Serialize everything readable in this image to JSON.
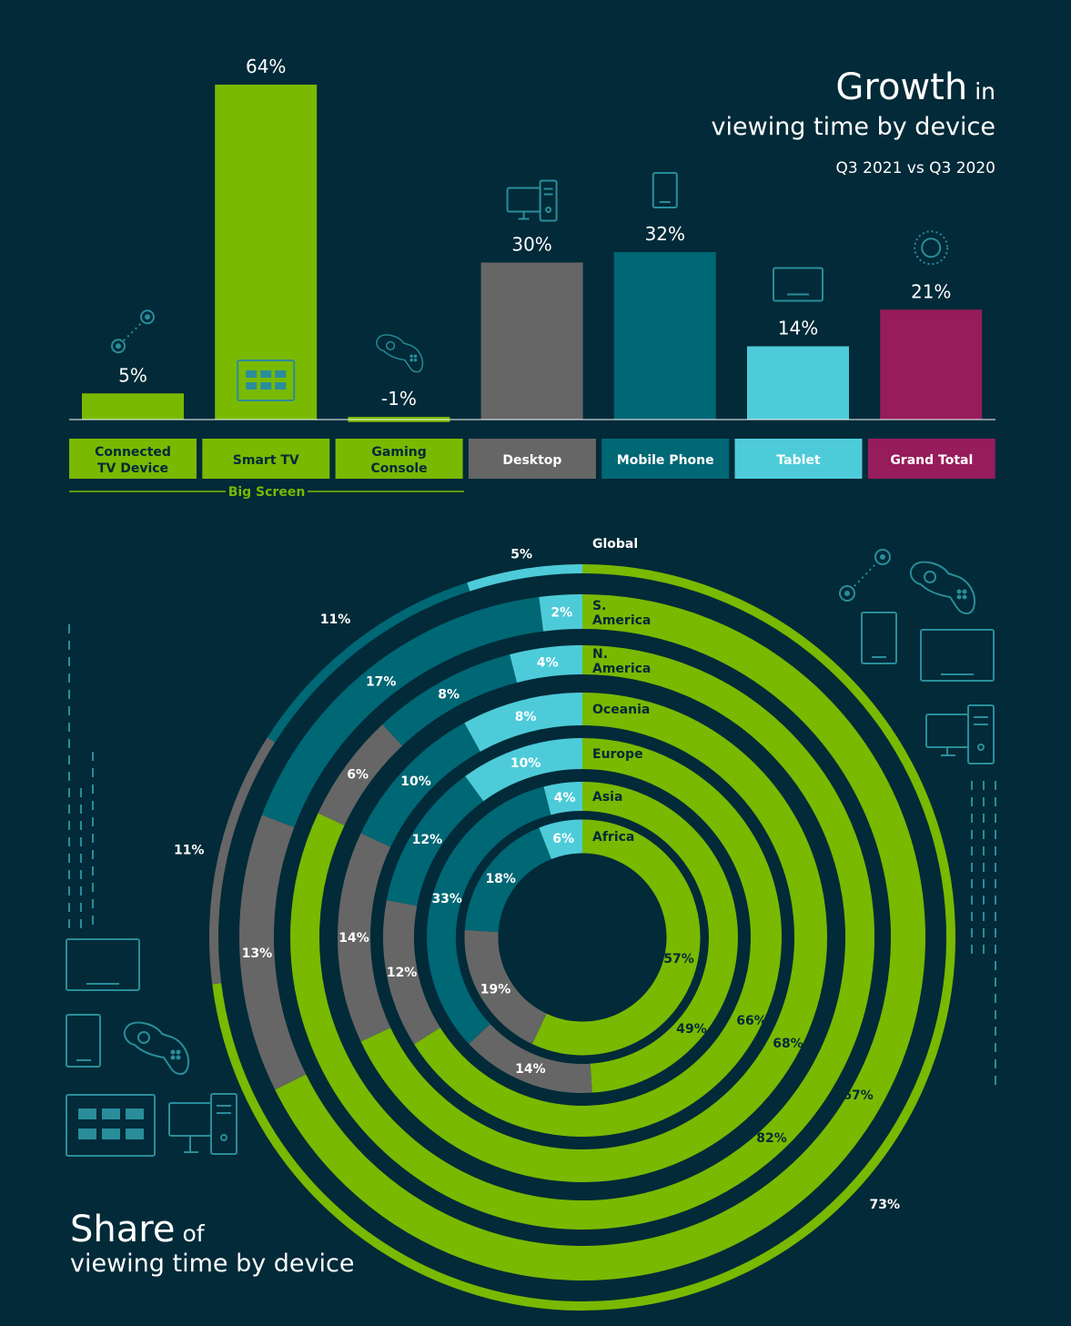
{
  "colors": {
    "background": "#022a38",
    "big_screen": "#79b900",
    "desktop": "#666666",
    "mobile_phone": "#006775",
    "tablet": "#4ecbd9",
    "grand_total": "#961c5c",
    "icon_stroke": "#2a8d9b",
    "donut_label_dark": "#022a38"
  },
  "growth_title": {
    "big": "Growth",
    "small": "in",
    "line2": "viewing time by device",
    "subtitle": "Q3 2021 vs Q3 2020"
  },
  "share_title": {
    "big": "Share",
    "small": "of",
    "line2": "viewing time by device"
  },
  "big_screen_label": "Big Screen",
  "chart_data": [
    {
      "type": "bar",
      "title": "Growth in viewing time by device",
      "subtitle": "Q3 2021 vs Q3 2020",
      "categories": [
        "Connected TV Device",
        "Smart TV",
        "Gaming Console",
        "Desktop",
        "Mobile Phone",
        "Tablet",
        "Grand Total"
      ],
      "values": [
        5,
        64,
        -1,
        30,
        32,
        14,
        21
      ],
      "value_labels": [
        "5%",
        "64%",
        "-1%",
        "30%",
        "32%",
        "14%",
        "21%"
      ],
      "category_labels": [
        [
          "Connected",
          "TV Device"
        ],
        [
          "Smart TV"
        ],
        [
          "Gaming",
          "Console"
        ],
        [
          "Desktop"
        ],
        [
          "Mobile Phone"
        ],
        [
          "Tablet"
        ],
        [
          "Grand Total"
        ]
      ],
      "colors": [
        "#79b900",
        "#79b900",
        "#79b900",
        "#666666",
        "#006775",
        "#4ecbd9",
        "#961c5c"
      ],
      "label_text_colors": [
        "#022a38",
        "#022a38",
        "#022a38",
        "#ffffff",
        "#ffffff",
        "#ffffff",
        "#ffffff"
      ],
      "icons": [
        "cast-icon",
        "tv-grid-icon",
        "gamepad-icon",
        "desktop-icon",
        "phone-icon",
        "tablet-icon",
        "globe-icon"
      ],
      "group": {
        "label": "Big Screen",
        "categories": [
          "Connected TV Device",
          "Smart TV",
          "Gaming Console"
        ]
      },
      "ylim": [
        -1,
        64
      ]
    },
    {
      "type": "pie",
      "subtype": "multi-ring donut",
      "title": "Share of viewing time by device",
      "categories": [
        "Big Screen",
        "Desktop",
        "Mobile Phone",
        "Tablet"
      ],
      "rings": [
        {
          "name": "Global",
          "label": [
            "Global"
          ],
          "values": [
            73,
            11,
            11,
            5
          ],
          "labels": [
            "73%",
            "11%",
            "11%",
            "5%"
          ]
        },
        {
          "name": "S. America",
          "label": [
            "S.",
            "America"
          ],
          "values": [
            67,
            13,
            17,
            2
          ],
          "labels": [
            "67%",
            "13%",
            "17%",
            "2%"
          ]
        },
        {
          "name": "N. America",
          "label": [
            "N.",
            "America"
          ],
          "values": [
            82,
            6,
            8,
            4
          ],
          "labels": [
            "82%",
            "6%",
            "8%",
            "4%"
          ]
        },
        {
          "name": "Oceania",
          "label": [
            "Oceania"
          ],
          "values": [
            68,
            14,
            10,
            8
          ],
          "labels": [
            "68%",
            "14%",
            "10%",
            "8%"
          ]
        },
        {
          "name": "Europe",
          "label": [
            "Europe"
          ],
          "values": [
            66,
            12,
            12,
            10
          ],
          "labels": [
            "66%",
            "12%",
            "12%",
            "10%"
          ]
        },
        {
          "name": "Asia",
          "label": [
            "Asia"
          ],
          "values": [
            49,
            14,
            33,
            4
          ],
          "labels": [
            "49%",
            "14%",
            "33%",
            "4%"
          ]
        },
        {
          "name": "Africa",
          "label": [
            "Africa"
          ],
          "values": [
            57,
            19,
            18,
            6
          ],
          "labels": [
            "57%",
            "19%",
            "18%",
            "6%"
          ]
        }
      ]
    }
  ]
}
